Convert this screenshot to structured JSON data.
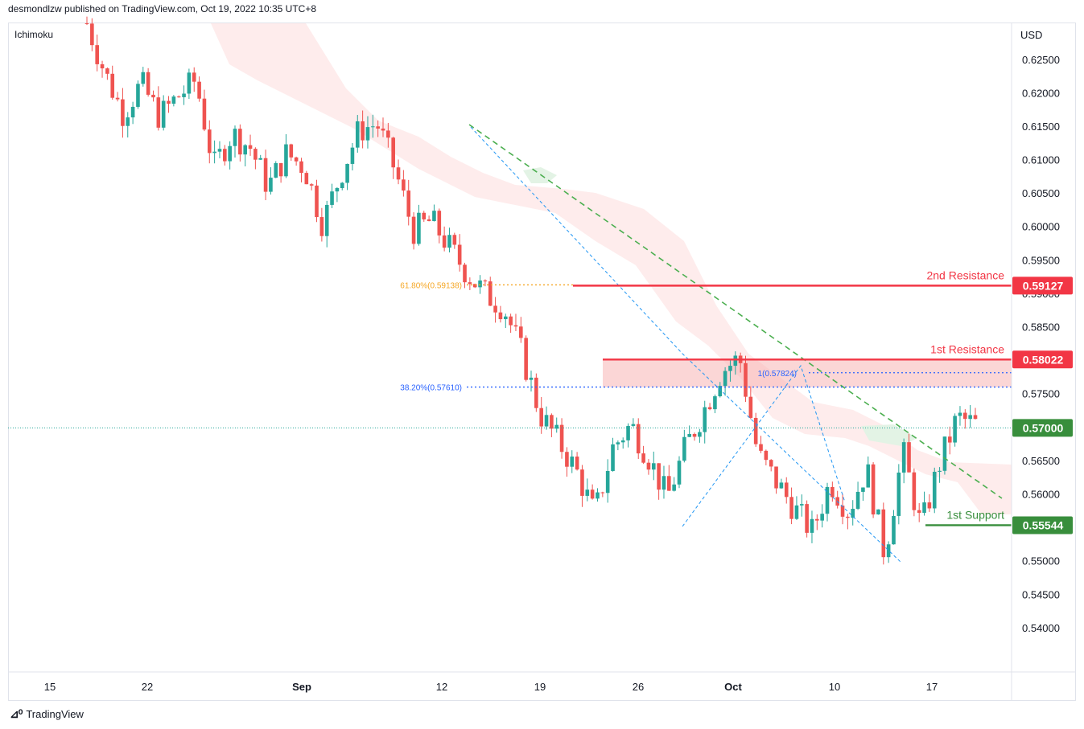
{
  "header": {
    "published": "desmondlzw published on TradingView.com, Oct 19, 2022 10:35 UTC+8"
  },
  "indicator": "Ichimoku",
  "currency": "USD",
  "footer": {
    "brand": "TradingView",
    "logo_icon": "tradingview-logo-icon"
  },
  "colors": {
    "up": "#26a69a",
    "down": "#ef5350",
    "resistance": "#f23645",
    "support": "#388e3c",
    "fib61": "#f5a623",
    "fib38": "#2962ff",
    "cloud_bear": "#fde5e5",
    "cloud_bull": "#e3f3e5",
    "trend_green": "#4caf50",
    "trend_blue": "#2196f3"
  },
  "chart_data": {
    "type": "candlestick",
    "symbol_quote": "USD",
    "ylim": [
      0.5335,
      0.6305
    ],
    "y_ticks": [
      "0.62500",
      "0.62000",
      "0.61500",
      "0.61000",
      "0.60500",
      "0.60000",
      "0.59500",
      "0.59000",
      "0.58500",
      "0.58000",
      "0.57500",
      "0.57000",
      "0.56500",
      "0.56000",
      "0.55500",
      "0.55000",
      "0.54500",
      "0.54000"
    ],
    "x_ticks": [
      "15",
      "22",
      "Sep",
      "12",
      "19",
      "26",
      "Oct",
      "10",
      "17"
    ],
    "price_path": [
      0.6305,
      0.623,
      0.617,
      0.6215,
      0.6165,
      0.6195,
      0.622,
      0.609,
      0.614,
      0.612,
      0.606,
      0.611,
      0.609,
      0.6005,
      0.608,
      0.6145,
      0.6155,
      0.6085,
      0.5995,
      0.601,
      0.597,
      0.593,
      0.59,
      0.588,
      0.581,
      0.572,
      0.568,
      0.5635,
      0.557,
      0.567,
      0.5705,
      0.5655,
      0.5595,
      0.567,
      0.5725,
      0.5785,
      0.5805,
      0.566,
      0.562,
      0.558,
      0.5545,
      0.562,
      0.5575,
      0.564,
      0.551,
      0.5665,
      0.555,
      0.5645,
      0.5715,
      0.5705
    ],
    "levels": [
      {
        "label": "2nd Resistance",
        "value": "0.59127",
        "y": 0.59127,
        "color": "resistance"
      },
      {
        "label": "1st Resistance",
        "value": "0.58022",
        "y": 0.58022,
        "color": "resistance"
      },
      {
        "label": "1st Support",
        "value": "0.55544",
        "y": 0.55544,
        "color": "support"
      }
    ],
    "last_price": {
      "value": "0.57000",
      "y": 0.57
    },
    "fib_labels": [
      {
        "label": "61.80%(0.59138)",
        "y": 0.59138
      },
      {
        "label": "38.20%(0.57610)",
        "y": 0.5761
      },
      {
        "label": "1(0.57824)",
        "y": 0.57824
      }
    ]
  }
}
